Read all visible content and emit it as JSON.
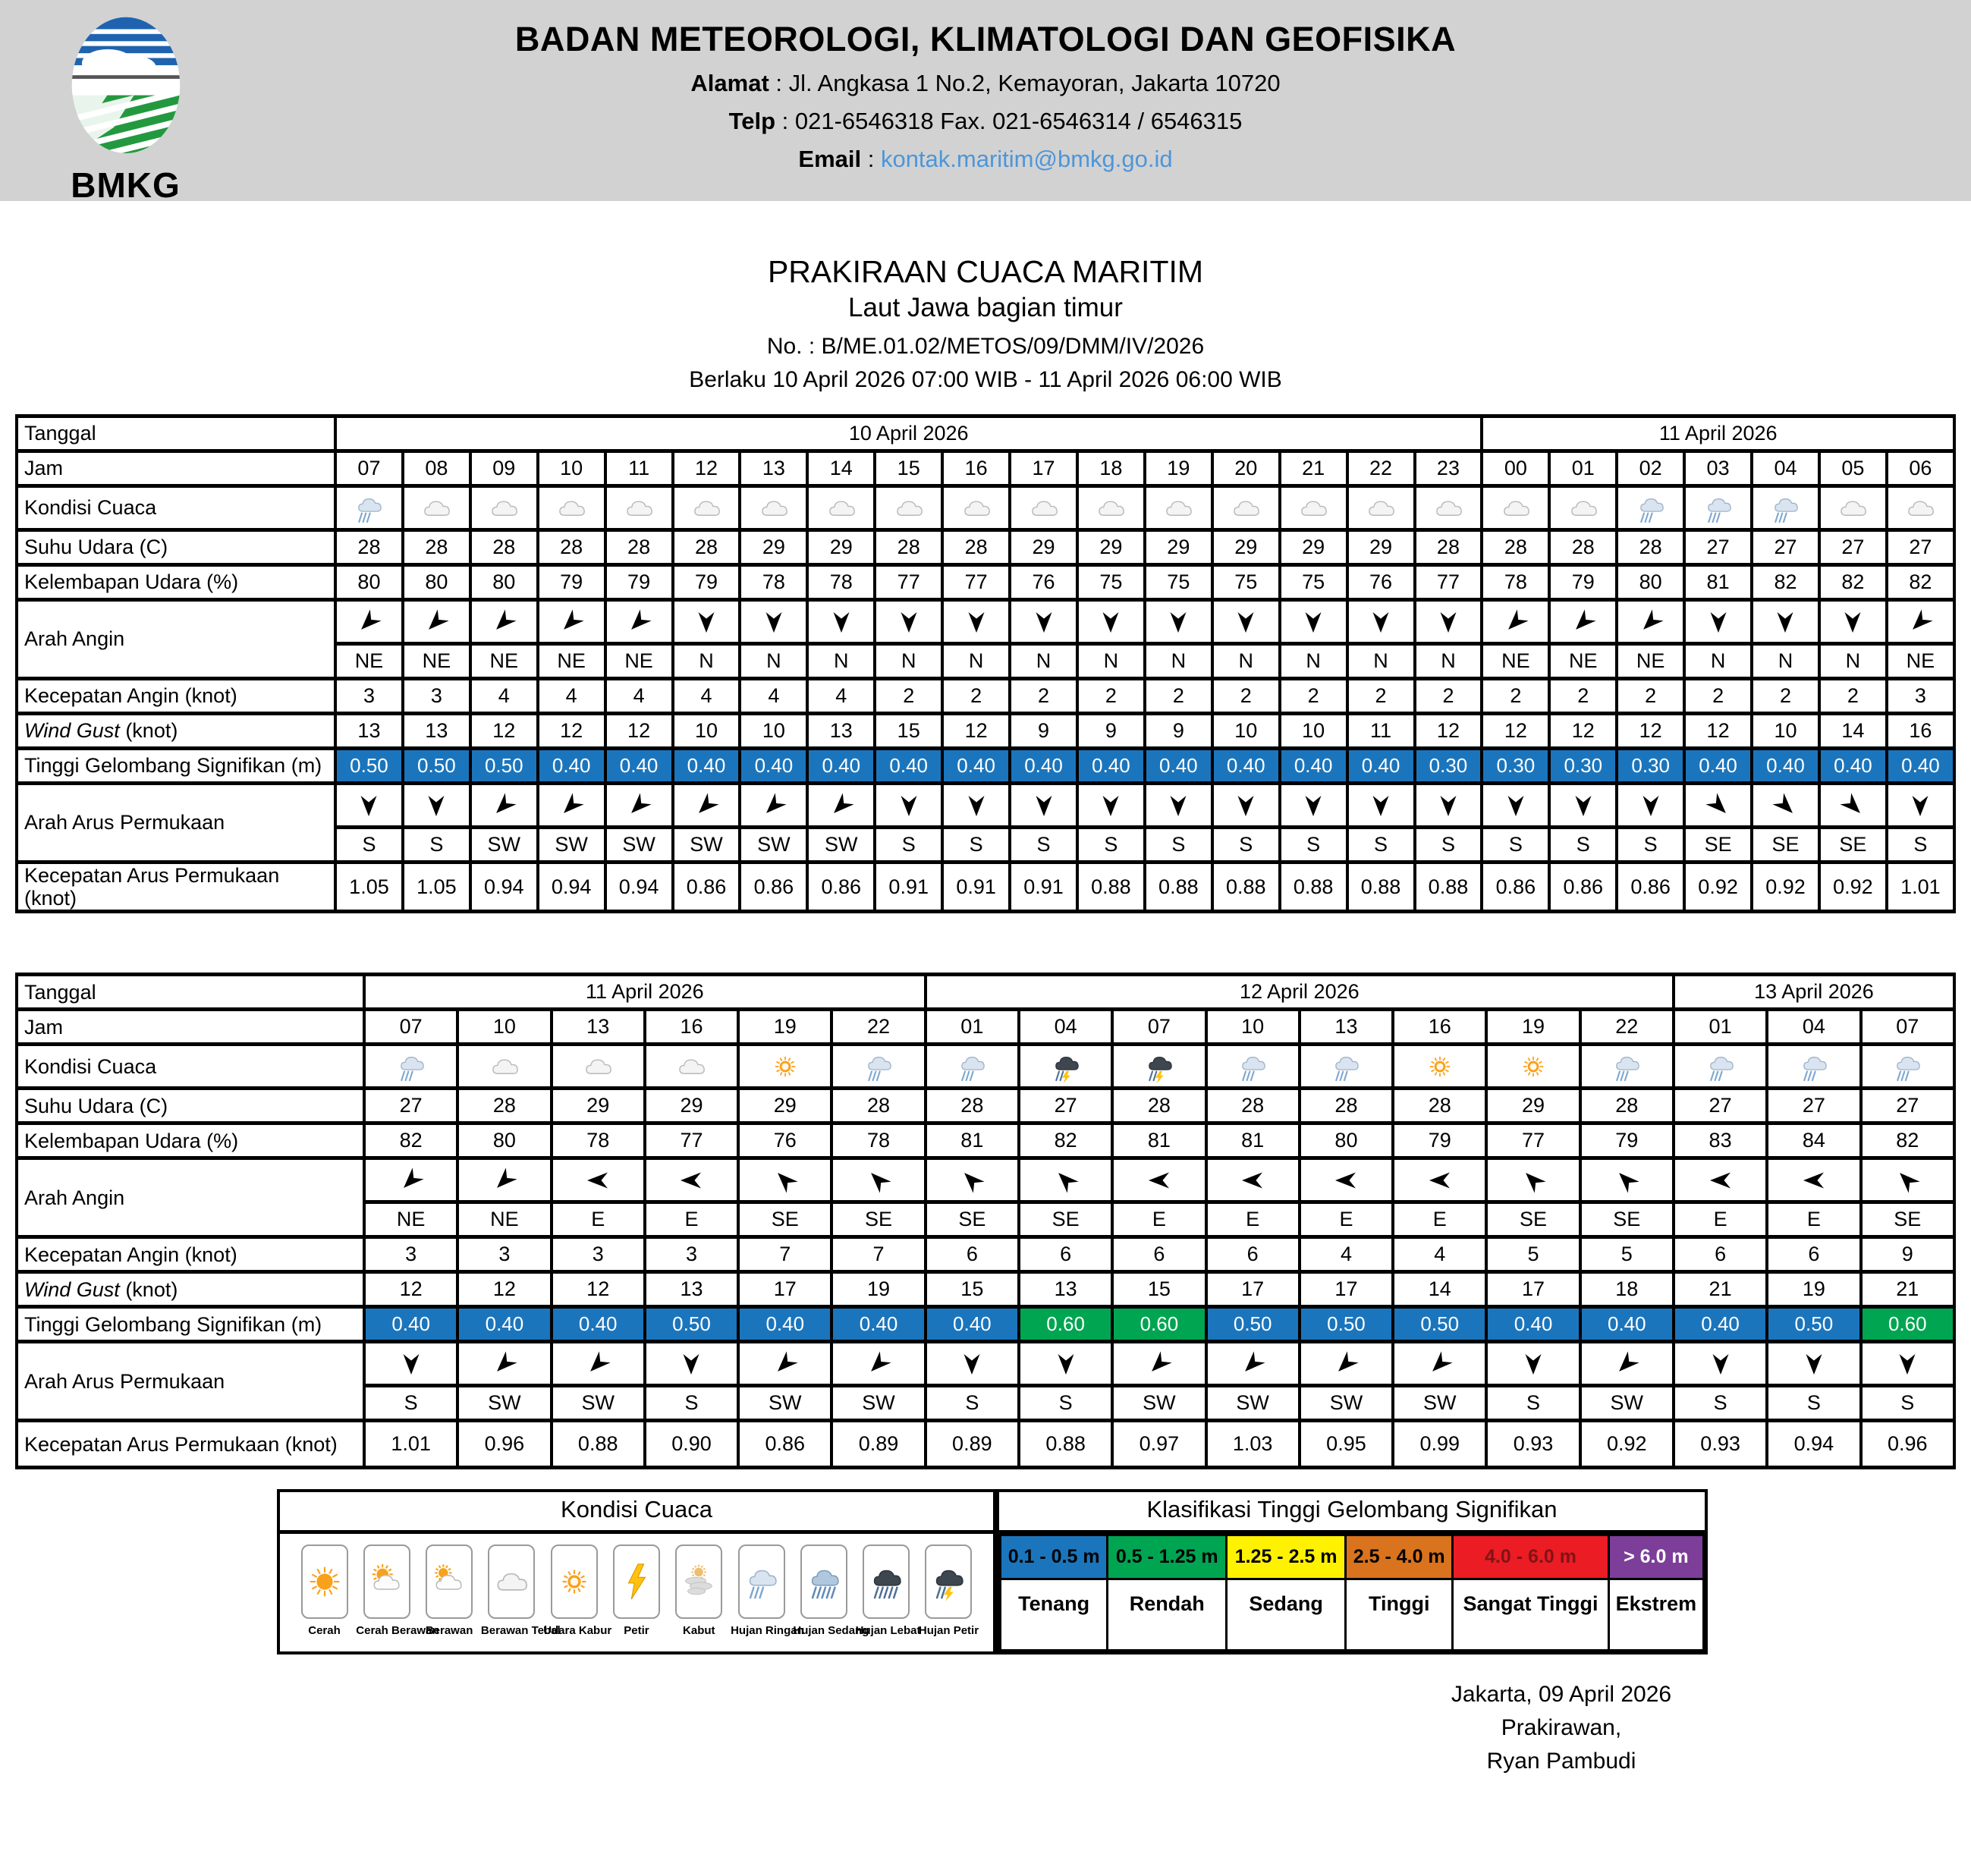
{
  "header": {
    "logo_text": "BMKG",
    "org": "BADAN METEOROLOGI, KLIMATOLOGI DAN GEOFISIKA",
    "alamat_label": "Alamat",
    "alamat": " : Jl. Angkasa 1 No.2, Kemayoran, Jakarta 10720",
    "telp_label": "Telp",
    "telp": " : 021-6546318 Fax. 021-6546314 / 6546315",
    "email_label": "Email",
    "email_sep": " : ",
    "email": "kontak.maritim@bmkg.go.id"
  },
  "title": {
    "line1": "PRAKIRAAN CUACA MARITIM",
    "line2": "Laut Jawa bagian timur",
    "line3": "No. :  B/ME.01.02/METOS/09/DMM/IV/2026",
    "line4": "Berlaku 10 April 2026 07:00 WIB - 11 April 2026 06:00 WIB"
  },
  "row_labels": {
    "tanggal": "Tanggal",
    "jam": "Jam",
    "kondisi": "Kondisi Cuaca",
    "suhu": "Suhu Udara (C)",
    "kelembapan": "Kelembapan Udara (%)",
    "arah_angin": "Arah Angin",
    "kecepatan_angin": "Kecepatan Angin (knot)",
    "wind_gust_italic": "Wind Gust",
    "wind_gust_rest": " (knot)",
    "gelombang": "Tinggi Gelombang Signifikan (m)",
    "arah_arus": "Arah Arus Permukaan",
    "kecepatan_arus": "Kecepatan Arus Permukaan (knot)"
  },
  "tables": [
    {
      "dates": [
        {
          "label": "10 April 2026",
          "span": 17
        },
        {
          "label": "11 April 2026",
          "span": 7
        }
      ],
      "jam": [
        "07",
        "08",
        "09",
        "10",
        "11",
        "12",
        "13",
        "14",
        "15",
        "16",
        "17",
        "18",
        "19",
        "20",
        "21",
        "22",
        "23",
        "00",
        "01",
        "02",
        "03",
        "04",
        "05",
        "06"
      ],
      "kondisi": [
        "hujan-ringan",
        "berawan-tebal",
        "berawan-tebal",
        "berawan-tebal",
        "berawan-tebal",
        "berawan-tebal",
        "berawan-tebal",
        "berawan-tebal",
        "berawan-tebal",
        "berawan-tebal",
        "berawan-tebal",
        "berawan-tebal",
        "berawan-tebal",
        "berawan-tebal",
        "berawan-tebal",
        "berawan-tebal",
        "berawan-tebal",
        "berawan-tebal",
        "berawan-tebal",
        "hujan-ringan",
        "hujan-ringan",
        "hujan-ringan",
        "berawan-tebal",
        "berawan-tebal"
      ],
      "suhu": [
        28,
        28,
        28,
        28,
        28,
        28,
        29,
        29,
        28,
        28,
        29,
        29,
        29,
        29,
        29,
        29,
        28,
        28,
        28,
        28,
        27,
        27,
        27,
        27
      ],
      "kelembapan": [
        80,
        80,
        80,
        79,
        79,
        79,
        78,
        78,
        77,
        77,
        76,
        75,
        75,
        75,
        75,
        76,
        77,
        78,
        79,
        80,
        81,
        82,
        82,
        82
      ],
      "arah_angin": [
        "NE",
        "NE",
        "NE",
        "NE",
        "NE",
        "N",
        "N",
        "N",
        "N",
        "N",
        "N",
        "N",
        "N",
        "N",
        "N",
        "N",
        "N",
        "NE",
        "NE",
        "NE",
        "N",
        "N",
        "N",
        "NE"
      ],
      "kecepatan_angin": [
        3,
        3,
        4,
        4,
        4,
        4,
        4,
        4,
        2,
        2,
        2,
        2,
        2,
        2,
        2,
        2,
        2,
        2,
        2,
        2,
        2,
        2,
        2,
        3
      ],
      "wind_gust": [
        13,
        13,
        12,
        12,
        12,
        10,
        10,
        13,
        15,
        12,
        9,
        9,
        9,
        10,
        10,
        11,
        12,
        12,
        12,
        12,
        12,
        10,
        14,
        16
      ],
      "gelombang": [
        "0.50",
        "0.50",
        "0.50",
        "0.40",
        "0.40",
        "0.40",
        "0.40",
        "0.40",
        "0.40",
        "0.40",
        "0.40",
        "0.40",
        "0.40",
        "0.40",
        "0.40",
        "0.40",
        "0.30",
        "0.30",
        "0.30",
        "0.30",
        "0.40",
        "0.40",
        "0.40",
        "0.40"
      ],
      "arah_arus": [
        "S",
        "S",
        "SW",
        "SW",
        "SW",
        "SW",
        "SW",
        "SW",
        "S",
        "S",
        "S",
        "S",
        "S",
        "S",
        "S",
        "S",
        "S",
        "S",
        "S",
        "S",
        "SE",
        "SE",
        "SE",
        "S"
      ],
      "kecepatan_arus": [
        "1.05",
        "1.05",
        "0.94",
        "0.94",
        "0.94",
        "0.86",
        "0.86",
        "0.86",
        "0.91",
        "0.91",
        "0.91",
        "0.88",
        "0.88",
        "0.88",
        "0.88",
        "0.88",
        "0.88",
        "0.86",
        "0.86",
        "0.86",
        "0.92",
        "0.92",
        "0.92",
        "1.01"
      ]
    },
    {
      "dates": [
        {
          "label": "11 April 2026",
          "span": 6
        },
        {
          "label": "12 April 2026",
          "span": 8
        },
        {
          "label": "13 April 2026",
          "span": 3
        }
      ],
      "jam": [
        "07",
        "10",
        "13",
        "16",
        "19",
        "22",
        "01",
        "04",
        "07",
        "10",
        "13",
        "16",
        "19",
        "22",
        "01",
        "04",
        "07"
      ],
      "kondisi": [
        "hujan-ringan",
        "berawan-tebal",
        "berawan-tebal",
        "berawan-tebal",
        "udara-kabur",
        "hujan-ringan",
        "hujan-ringan",
        "hujan-petir",
        "hujan-petir",
        "hujan-ringan",
        "hujan-ringan",
        "udara-kabur",
        "udara-kabur",
        "hujan-ringan",
        "hujan-ringan",
        "hujan-ringan",
        "hujan-ringan"
      ],
      "suhu": [
        27,
        28,
        29,
        29,
        29,
        28,
        28,
        27,
        28,
        28,
        28,
        28,
        29,
        28,
        27,
        27,
        27
      ],
      "kelembapan": [
        82,
        80,
        78,
        77,
        76,
        78,
        81,
        82,
        81,
        81,
        80,
        79,
        77,
        79,
        83,
        84,
        82
      ],
      "arah_angin": [
        "NE",
        "NE",
        "E",
        "E",
        "SE",
        "SE",
        "SE",
        "SE",
        "E",
        "E",
        "E",
        "E",
        "SE",
        "SE",
        "E",
        "E",
        "SE"
      ],
      "kecepatan_angin": [
        3,
        3,
        3,
        3,
        7,
        7,
        6,
        6,
        6,
        6,
        4,
        4,
        5,
        5,
        6,
        6,
        9
      ],
      "wind_gust": [
        12,
        12,
        12,
        13,
        17,
        19,
        15,
        13,
        15,
        17,
        17,
        14,
        17,
        18,
        21,
        19,
        21
      ],
      "gelombang": [
        "0.40",
        "0.40",
        "0.40",
        "0.50",
        "0.40",
        "0.40",
        "0.40",
        "0.60",
        "0.60",
        "0.50",
        "0.50",
        "0.50",
        "0.40",
        "0.40",
        "0.40",
        "0.50",
        "0.60"
      ],
      "arah_arus": [
        "S",
        "SW",
        "SW",
        "S",
        "SW",
        "SW",
        "S",
        "S",
        "SW",
        "SW",
        "SW",
        "SW",
        "S",
        "SW",
        "S",
        "S",
        "S"
      ],
      "kecepatan_arus": [
        "1.01",
        "0.96",
        "0.88",
        "0.90",
        "0.86",
        "0.89",
        "0.89",
        "0.88",
        "0.97",
        "1.03",
        "0.95",
        "0.99",
        "0.93",
        "0.92",
        "0.93",
        "0.94",
        "0.96"
      ]
    }
  ],
  "legend_kondisi": {
    "title": "Kondisi Cuaca",
    "items": [
      {
        "icon": "cerah",
        "label": "Cerah"
      },
      {
        "icon": "cerah-berawan",
        "label": "Cerah Berawan"
      },
      {
        "icon": "berawan",
        "label": "Berawan"
      },
      {
        "icon": "berawan-tebal",
        "label": "Berawan Tebal"
      },
      {
        "icon": "udara-kabur",
        "label": "Udara Kabur"
      },
      {
        "icon": "petir",
        "label": "Petir"
      },
      {
        "icon": "kabut",
        "label": "Kabut"
      },
      {
        "icon": "hujan-ringan",
        "label": "Hujan Ringan"
      },
      {
        "icon": "hujan-sedang",
        "label": "Hujan Sedang"
      },
      {
        "icon": "hujan-lebat",
        "label": "Hujan Lebat"
      },
      {
        "icon": "hujan-petir",
        "label": "Hujan Petir"
      }
    ]
  },
  "legend_gelombang": {
    "title": "Klasifikasi Tinggi Gelombang Signifikan",
    "classes": [
      {
        "range": "0.1 - 0.5 m",
        "label": "Tenang",
        "color": "#1B75BC",
        "text_color": "#000000"
      },
      {
        "range": "0.5 - 1.25 m",
        "label": "Rendah",
        "color": "#00A551",
        "text_color": "#000000"
      },
      {
        "range": "1.25 - 2.5 m",
        "label": "Sedang",
        "color": "#FFF200",
        "text_color": "#000000"
      },
      {
        "range": "2.5 - 4.0 m",
        "label": "Tinggi",
        "color": "#D9731D",
        "text_color": "#000000"
      },
      {
        "range": "4.0 - 6.0 m",
        "label": "Sangat Tinggi",
        "color": "#EC1C24",
        "text_color": "#7F1416"
      },
      {
        "range": "> 6.0 m",
        "label": "Ekstrem",
        "color": "#7C3E98",
        "text_color": "#FFFFFF"
      }
    ]
  },
  "footer": {
    "line1": "Jakarta, 09 April 2026",
    "line2": "Prakirawan,",
    "line3": "Ryan Pambudi"
  },
  "colors": {
    "wave_blue": "#1B75BC",
    "wave_green": "#00A551",
    "header_bg": "#D2D2D2",
    "email_link": "#4D96D9"
  }
}
